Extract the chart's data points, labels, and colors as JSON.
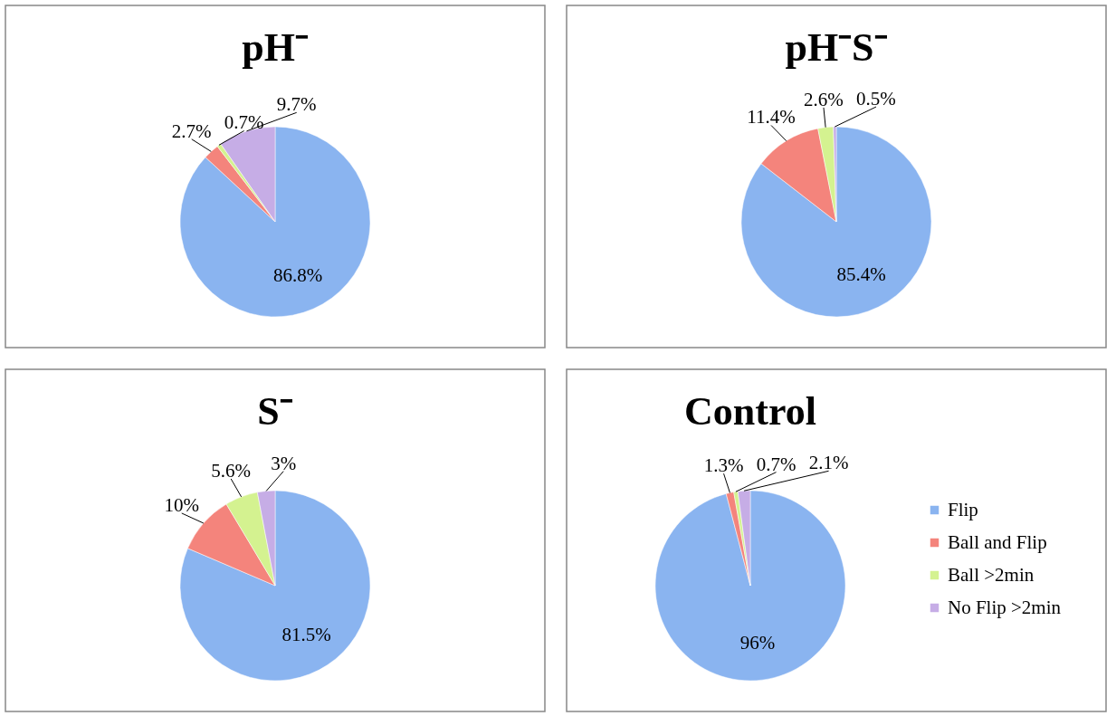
{
  "chart_data": [
    {
      "type": "pie",
      "title": "pH⁻",
      "categories": [
        null,
        null,
        null,
        null
      ],
      "values": [
        86.8,
        2.7,
        0.7,
        9.7
      ],
      "value_labels": [
        "86.8%",
        "2.7%",
        "0.7%",
        "9.7%"
      ],
      "colors": [
        "#8ab4f0",
        "#f4847c",
        "#d4f290",
        "#c6ade6"
      ],
      "legend": false
    },
    {
      "type": "pie",
      "title": "pH⁻S⁻",
      "categories": [
        null,
        null,
        null,
        null
      ],
      "values": [
        85.4,
        11.4,
        2.6,
        0.5
      ],
      "value_labels": [
        "85.4%",
        "11.4%",
        "2.6%",
        "0.5%"
      ],
      "colors": [
        "#8ab4f0",
        "#f4847c",
        "#d4f290",
        "#c6ade6"
      ],
      "legend": false
    },
    {
      "type": "pie",
      "title": "S⁻",
      "categories": [
        null,
        null,
        null,
        null
      ],
      "values": [
        81.5,
        10,
        5.6,
        3
      ],
      "value_labels": [
        "81.5%",
        "10%",
        "5.6%",
        "3%"
      ],
      "colors": [
        "#8ab4f0",
        "#f4847c",
        "#d4f290",
        "#c6ade6"
      ],
      "legend": false
    },
    {
      "type": "pie",
      "title": "Control",
      "categories": [
        "Flip",
        "Ball and Flip",
        "Ball >2min",
        "No Flip >2min"
      ],
      "values": [
        96,
        1.3,
        0.7,
        2.1
      ],
      "value_labels": [
        "96%",
        "1.3%",
        "0.7%",
        "2.1%"
      ],
      "colors": [
        "#8ab4f0",
        "#f4847c",
        "#d4f290",
        "#c6ade6"
      ],
      "legend": "right"
    }
  ]
}
